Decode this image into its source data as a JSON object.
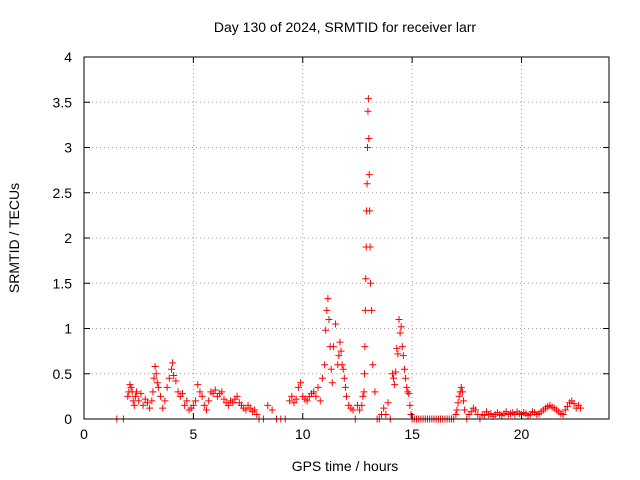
{
  "chart_data": {
    "type": "scatter",
    "title": "Day 130 of 2024, SRMTID for receiver larr",
    "xlabel": "GPS time / hours",
    "ylabel": "SRMTID / TECUs",
    "xlim": [
      0,
      24
    ],
    "ylim": [
      0,
      4
    ],
    "xticks": [
      0,
      5,
      10,
      15,
      20
    ],
    "xtick_labels": [
      "0",
      "5",
      "10",
      "15",
      "20"
    ],
    "yticks": [
      0,
      0.5,
      1,
      1.5,
      2,
      2.5,
      3,
      3.5,
      4
    ],
    "ytick_labels": [
      "0",
      "0.5",
      "1",
      "1.5",
      "2",
      "2.5",
      "3",
      "3.5",
      "4"
    ],
    "grid": true,
    "marker": "plus",
    "color": "#ff0000",
    "series": [
      {
        "name": "SRMTID",
        "x": [
          1.5,
          1.8,
          2.0,
          2.05,
          2.1,
          2.15,
          2.2,
          2.25,
          2.3,
          2.35,
          2.4,
          2.5,
          2.6,
          2.7,
          2.8,
          2.9,
          3.0,
          3.1,
          3.15,
          3.2,
          3.25,
          3.3,
          3.35,
          3.4,
          3.5,
          3.6,
          3.7,
          3.8,
          3.9,
          4.0,
          4.05,
          4.1,
          4.2,
          4.3,
          4.4,
          4.5,
          4.6,
          4.7,
          4.8,
          4.9,
          5.0,
          5.1,
          5.2,
          5.3,
          5.4,
          5.5,
          5.6,
          5.7,
          5.8,
          5.9,
          6.0,
          6.1,
          6.2,
          6.3,
          6.4,
          6.5,
          6.6,
          6.7,
          6.8,
          6.9,
          7.0,
          7.1,
          7.2,
          7.3,
          7.4,
          7.5,
          7.6,
          7.7,
          7.8,
          7.9,
          8.0,
          8.2,
          8.4,
          8.6,
          8.8,
          9.0,
          9.2,
          9.4,
          9.5,
          9.6,
          9.7,
          9.8,
          9.9,
          10.0,
          10.1,
          10.2,
          10.3,
          10.4,
          10.5,
          10.6,
          10.7,
          10.8,
          10.9,
          11.0,
          11.05,
          11.1,
          11.15,
          11.2,
          11.25,
          11.3,
          11.35,
          11.4,
          11.5,
          11.6,
          11.65,
          11.7,
          11.75,
          11.8,
          11.85,
          11.9,
          11.95,
          12.0,
          12.1,
          12.2,
          12.3,
          12.4,
          12.5,
          12.6,
          12.7,
          12.75,
          12.8,
          12.82,
          12.84,
          12.86,
          12.88,
          12.9,
          12.92,
          12.94,
          12.96,
          12.98,
          13.0,
          13.02,
          13.04,
          13.06,
          13.08,
          13.1,
          13.15,
          13.2,
          13.3,
          13.4,
          13.5,
          13.6,
          13.7,
          13.8,
          13.9,
          14.0,
          14.1,
          14.15,
          14.2,
          14.25,
          14.3,
          14.35,
          14.4,
          14.45,
          14.5,
          14.55,
          14.6,
          14.65,
          14.7,
          14.75,
          14.8,
          14.85,
          14.9,
          14.95,
          15.0,
          15.1,
          15.2,
          15.3,
          15.4,
          15.5,
          15.6,
          15.7,
          15.8,
          15.9,
          16.0,
          16.1,
          16.2,
          16.3,
          16.4,
          16.5,
          16.6,
          16.7,
          16.8,
          16.9,
          17.0,
          17.05,
          17.1,
          17.15,
          17.2,
          17.25,
          17.3,
          17.35,
          17.4,
          17.5,
          17.6,
          17.7,
          17.8,
          17.9,
          18.0,
          18.1,
          18.2,
          18.3,
          18.4,
          18.5,
          18.6,
          18.7,
          18.8,
          18.9,
          19.0,
          19.1,
          19.2,
          19.3,
          19.4,
          19.5,
          19.6,
          19.7,
          19.8,
          19.9,
          20.0,
          20.1,
          20.2,
          20.3,
          20.4,
          20.5,
          20.6,
          20.7,
          20.8,
          20.9,
          21.0,
          21.1,
          21.2,
          21.3,
          21.4,
          21.5,
          21.6,
          21.7,
          21.8,
          21.9,
          22.0,
          22.1,
          22.2,
          22.3,
          22.4,
          22.5,
          22.6,
          22.7
        ],
        "y": [
          0.0,
          0.0,
          0.25,
          0.3,
          0.38,
          0.35,
          0.3,
          0.2,
          0.15,
          0.25,
          0.3,
          0.2,
          0.28,
          0.15,
          0.22,
          0.18,
          0.12,
          0.2,
          0.3,
          0.45,
          0.58,
          0.5,
          0.4,
          0.35,
          0.25,
          0.12,
          0.2,
          0.35,
          0.45,
          0.55,
          0.62,
          0.48,
          0.42,
          0.3,
          0.25,
          0.28,
          0.15,
          0.2,
          0.1,
          0.12,
          0.15,
          0.2,
          0.38,
          0.3,
          0.25,
          0.15,
          0.1,
          0.2,
          0.3,
          0.28,
          0.32,
          0.25,
          0.28,
          0.3,
          0.22,
          0.18,
          0.15,
          0.2,
          0.18,
          0.22,
          0.25,
          0.18,
          0.15,
          0.12,
          0.1,
          0.15,
          0.12,
          0.08,
          0.1,
          0.05,
          0.0,
          0.0,
          0.15,
          0.1,
          0.0,
          0.0,
          0.0,
          0.2,
          0.25,
          0.18,
          0.22,
          0.35,
          0.4,
          0.25,
          0.22,
          0.2,
          0.25,
          0.28,
          0.3,
          0.25,
          0.35,
          0.2,
          0.45,
          0.6,
          0.98,
          1.2,
          1.33,
          1.1,
          0.8,
          0.55,
          0.4,
          0.8,
          1.05,
          0.6,
          0.7,
          0.85,
          0.75,
          0.6,
          0.55,
          0.45,
          0.35,
          0.25,
          0.15,
          0.12,
          0.1,
          0.0,
          0.15,
          0.1,
          0.15,
          0.25,
          0.3,
          0.5,
          0.8,
          1.2,
          1.55,
          1.9,
          2.3,
          2.6,
          3.0,
          3.4,
          3.54,
          3.1,
          2.7,
          2.3,
          1.9,
          1.5,
          1.2,
          0.6,
          0.3,
          0.0,
          0.0,
          0.05,
          0.12,
          0.05,
          0.18,
          0.0,
          0.5,
          0.45,
          0.38,
          0.52,
          0.78,
          0.72,
          1.1,
          0.95,
          1.02,
          0.8,
          0.7,
          0.55,
          0.45,
          0.35,
          0.3,
          0.28,
          0.15,
          0.05,
          0.0,
          0.0,
          0.0,
          0.0,
          0.0,
          0.0,
          0.0,
          0.0,
          0.0,
          0.0,
          0.0,
          0.0,
          0.0,
          0.0,
          0.0,
          0.0,
          0.0,
          0.0,
          0.0,
          0.0,
          0.05,
          0.1,
          0.18,
          0.25,
          0.3,
          0.35,
          0.3,
          0.2,
          0.1,
          0.0,
          0.05,
          0.08,
          0.12,
          0.1,
          0.05,
          0.0,
          0.05,
          0.04,
          0.08,
          0.05,
          0.06,
          0.03,
          0.05,
          0.07,
          0.05,
          0.04,
          0.06,
          0.08,
          0.05,
          0.06,
          0.07,
          0.05,
          0.08,
          0.06,
          0.05,
          0.07,
          0.06,
          0.04,
          0.05,
          0.08,
          0.07,
          0.05,
          0.06,
          0.08,
          0.1,
          0.12,
          0.14,
          0.15,
          0.13,
          0.12,
          0.1,
          0.08,
          0.06,
          0.05,
          0.1,
          0.14,
          0.18,
          0.2,
          0.17,
          0.12,
          0.15,
          0.12
        ]
      }
    ]
  }
}
